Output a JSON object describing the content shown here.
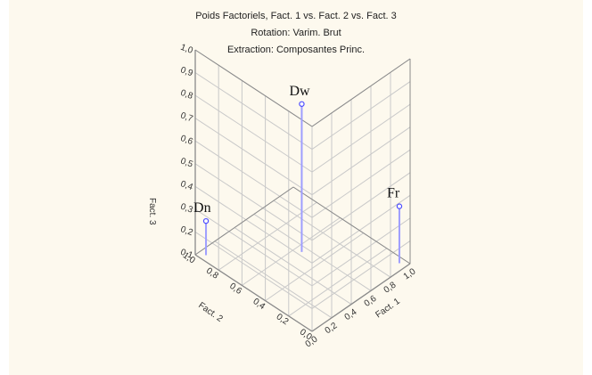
{
  "colors": {
    "panel_bg": "#fdf9ee",
    "grid": "#c9c9c9",
    "frame": "#8a8a8a",
    "marker": "#4b4bff",
    "stem": "#9e9eff"
  },
  "chart_data": {
    "type": "scatter3d",
    "title_lines": [
      "Poids Factoriels, Fact. 1 vs. Fact. 2 vs. Fact. 3",
      "Rotation: Varim. Brut",
      "Extraction: Composantes Princ."
    ],
    "axes": {
      "x": {
        "label": "Fact. 1",
        "ticks": [
          "0,0",
          "0,2",
          "0,4",
          "0,6",
          "0,8",
          "1,0"
        ],
        "range": [
          0,
          1
        ]
      },
      "y": {
        "label": "Fact. 2",
        "ticks": [
          "0,0",
          "0,2",
          "0,4",
          "0,6",
          "0,8",
          "1,0"
        ],
        "range": [
          0,
          1
        ]
      },
      "z": {
        "label": "Fact. 3",
        "ticks": [
          "0,1",
          "0,2",
          "0,3",
          "0,4",
          "0,5",
          "0,6",
          "0,7",
          "0,8",
          "0,9",
          "1,0"
        ],
        "range": [
          0.1,
          1
        ]
      }
    },
    "grid": true,
    "points": [
      {
        "name": "Dn",
        "x": 0.05,
        "y": 0.95,
        "z": 0.25
      },
      {
        "name": "Dw",
        "x": 0.55,
        "y": 0.55,
        "z": 0.75
      },
      {
        "name": "Fr",
        "x": 0.95,
        "y": 0.05,
        "z": 0.35
      }
    ]
  }
}
